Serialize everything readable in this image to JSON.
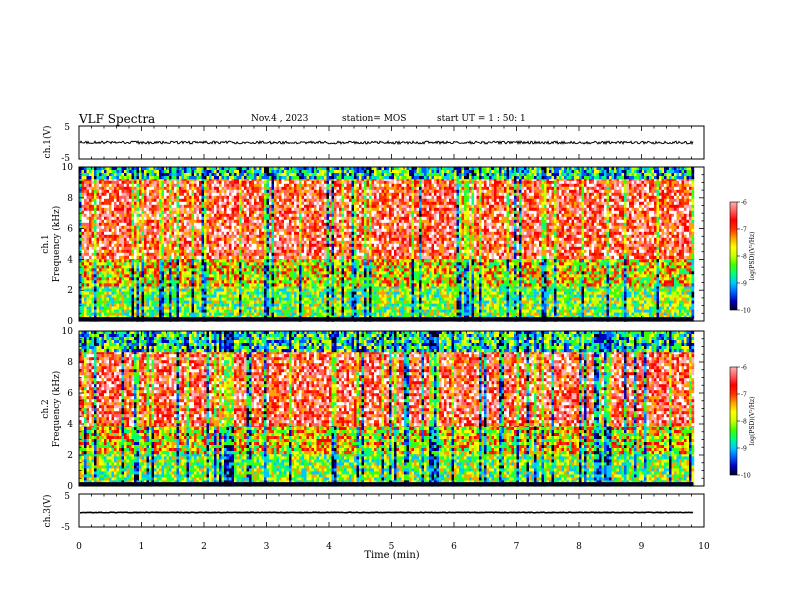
{
  "header": {
    "title": "VLF Spectra",
    "date": "Nov.4 , 2023",
    "station": "station= MOS",
    "start_ut": "start UT = 1 : 50: 1"
  },
  "chart_data": {
    "type": "heatmap",
    "x_axis": {
      "label": "Time (min)",
      "range": [
        0,
        10
      ],
      "ticks": [
        "0",
        "1",
        "2",
        "3",
        "4",
        "5",
        "6",
        "7",
        "8",
        "9",
        "10"
      ],
      "data_end": 9.83
    },
    "panels": [
      {
        "id": "ch1-waveform",
        "type": "line",
        "ylabel": "ch.1(V)",
        "ylim": [
          -5,
          5
        ],
        "ytick_labels": [
          "5",
          "-5"
        ],
        "trace_level": 0,
        "trace_color": "#000000"
      },
      {
        "id": "ch1-spectrogram",
        "type": "heatmap",
        "ylabel_top": "ch.1",
        "ylabel_bottom": "Frequency (kHz)",
        "ylim": [
          0,
          10
        ],
        "ytick_labels": [
          "0",
          "2",
          "4",
          "6",
          "8",
          "10"
        ],
        "band_low": [
          0,
          2.3
        ],
        "band_mid": [
          2.3,
          4.2
        ],
        "band_high": [
          4.2,
          9.3
        ],
        "band_top": [
          9.3,
          10
        ],
        "colorbar": {
          "label": "log(PSD)(V²/Hz)",
          "range": [
            -10,
            -6
          ],
          "tick_labels": [
            "-6",
            "-7",
            "-8",
            "-9",
            "-10"
          ]
        }
      },
      {
        "id": "ch2-spectrogram",
        "type": "heatmap",
        "ylabel_top": "ch.2",
        "ylabel_bottom": "Frequency (kHz)",
        "ylim": [
          0,
          10
        ],
        "ytick_labels": [
          "0",
          "2",
          "4",
          "6",
          "8",
          "10"
        ],
        "band_low": [
          0,
          2.1
        ],
        "band_mid": [
          2.1,
          4.0
        ],
        "band_high": [
          4.0,
          8.7
        ],
        "band_top": [
          8.7,
          10
        ],
        "colorbar": {
          "label": "log(PSD)(V²/Hz)",
          "range": [
            -10,
            -6
          ],
          "tick_labels": [
            "-6",
            "-7",
            "-8",
            "-9",
            "-10"
          ]
        }
      },
      {
        "id": "ch3-waveform",
        "type": "line",
        "ylabel": "ch.3(V)",
        "ylim": [
          -5,
          5
        ],
        "ytick_labels": [
          "5",
          "-5"
        ],
        "trace_level": -0.6,
        "trace_color": "#000000"
      }
    ],
    "colormap": [
      "#000020",
      "#0000c0",
      "#0060ff",
      "#00c8ff",
      "#00ff80",
      "#40ff00",
      "#c8ff00",
      "#ffff00",
      "#ffa000",
      "#ff3000",
      "#ff0000",
      "#ff6060",
      "#ffb0b0",
      "#ffffff"
    ]
  }
}
